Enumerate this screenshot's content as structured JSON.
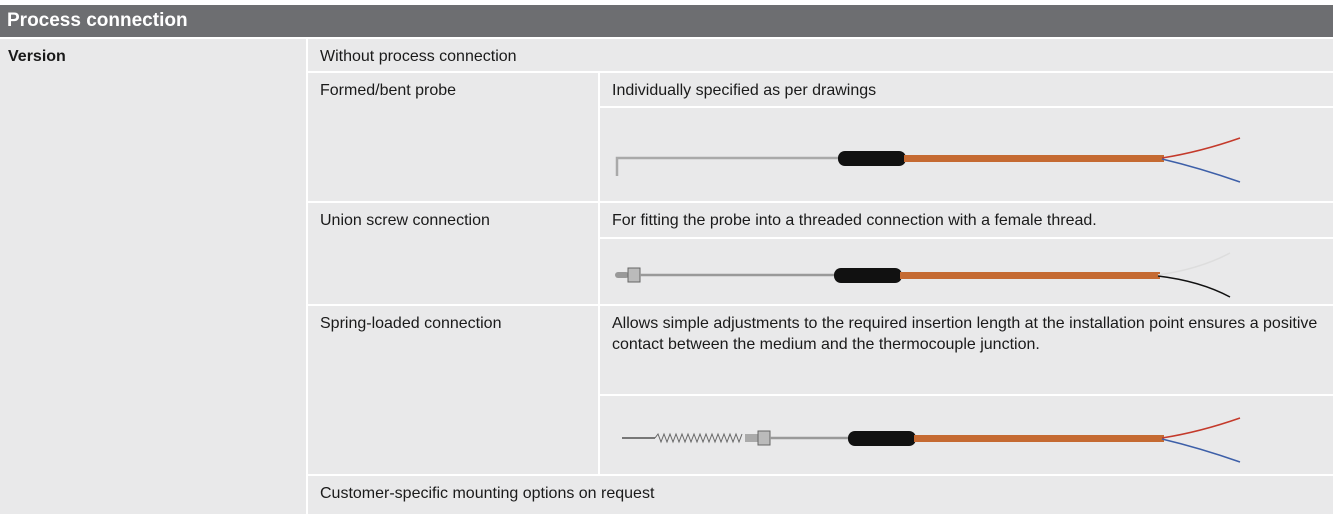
{
  "header": {
    "title": "Process connection"
  },
  "table": {
    "label": "Version",
    "rows": [
      {
        "text": "Without process connection"
      },
      {
        "name": "Formed/bent probe",
        "description": "Individually specified as per drawings"
      },
      {
        "name": "Union screw connection",
        "description": "For fitting the probe into a threaded connection with a female thread."
      },
      {
        "name": "Spring-loaded connection",
        "description": "Allows simple adjustments to the required insertion length at the installation point ensures a positive contact between the medium and the thermocouple junction."
      },
      {
        "text": "Customer-specific mounting options on request"
      }
    ]
  }
}
